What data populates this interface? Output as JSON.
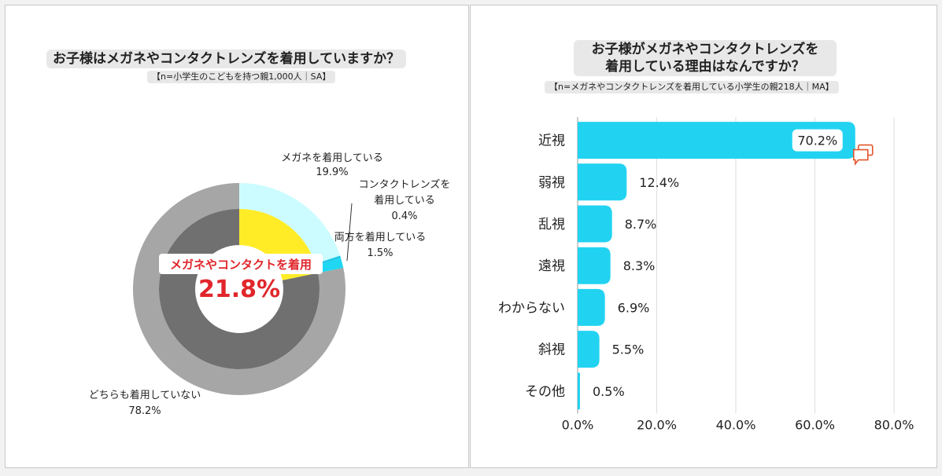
{
  "left": {
    "title": "お子様はメガネやコンタクトレンズを着用していますか？",
    "subtitle": "【n=小学生のこどもを持つ親1,000人｜SA】",
    "center_label": "メガネやコンタクトを着用",
    "center_value": "21.8%",
    "labels": [
      {
        "lines": [
          "メガネを着用している",
          "19.9%"
        ]
      },
      {
        "lines": [
          "コンタクトレンズを",
          "着用している",
          "0.4%"
        ]
      },
      {
        "lines": [
          "両方を着用している",
          "1.5%"
        ]
      },
      {
        "lines": [
          "どちらも着用していない",
          "78.2%"
        ]
      }
    ]
  },
  "right": {
    "title_line1": "お子様がメガネやコンタクトレンズを",
    "title_line2": "着用している理由はなんですか？",
    "subtitle": "【n=メガネやコンタクトレンズを着用している小学生の親218人｜MA】"
  },
  "chart_data": [
    {
      "type": "pie",
      "style": "nested donut",
      "outer_ring": {
        "slices": [
          {
            "label": "メガネを着用している",
            "value": 19.9,
            "color": "#ccfcff"
          },
          {
            "label": "コンタクトレンズを着用している",
            "value": 0.4,
            "color": "#1ec8e8"
          },
          {
            "label": "両方を着用している",
            "value": 1.5,
            "color": "#1fd7f2"
          },
          {
            "label": "どちらも着用していない",
            "value": 78.2,
            "color": "#a6a6a6"
          }
        ]
      },
      "inner_ring": {
        "slices": [
          {
            "label": "メガネやコンタクトを着用",
            "value": 21.8,
            "color": "#ffec27"
          },
          {
            "label": "どちらも着用していない",
            "value": 78.2,
            "color": "#707070"
          }
        ]
      }
    },
    {
      "type": "bar",
      "orientation": "horizontal",
      "categories": [
        "近視",
        "弱視",
        "乱視",
        "遠視",
        "わからない",
        "斜視",
        "その他"
      ],
      "values": [
        70.2,
        12.4,
        8.7,
        8.3,
        6.9,
        5.5,
        0.5
      ],
      "value_labels": [
        "70.2%",
        "12.4%",
        "8.7%",
        "8.3%",
        "6.9%",
        "5.5%",
        "0.5%"
      ],
      "xlim": [
        0,
        80
      ],
      "ticks": [
        "0.0%",
        "20.0%",
        "40.0%",
        "60.0%",
        "80.0%"
      ],
      "bar_color": "#22d3f1",
      "grid": true
    }
  ]
}
